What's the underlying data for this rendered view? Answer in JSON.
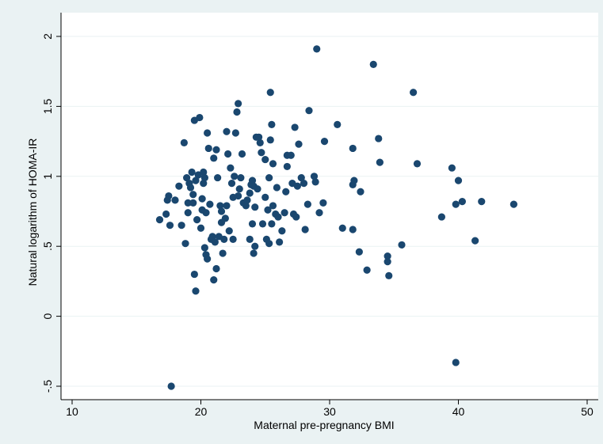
{
  "chart_data": {
    "type": "scatter",
    "title": "",
    "xlabel": "Maternal pre-pregnancy BMI",
    "ylabel": "Natural logarithm of HOMA-IR",
    "xlim": [
      10,
      50
    ],
    "ylim": [
      -0.5,
      2
    ],
    "xticks": [
      10,
      20,
      30,
      40,
      50
    ],
    "yticks": [
      -0.5,
      0,
      0.5,
      1,
      1.5,
      2
    ],
    "ytick_labels": [
      "-.5",
      "0",
      ".5",
      "1",
      "1.5",
      "2"
    ],
    "xtick_labels": [
      "10",
      "20",
      "30",
      "40",
      "50"
    ],
    "grid": "horizontal",
    "colors": {
      "marker": "#1a476f",
      "plot_bg": "#ffffff",
      "outer_bg": "#eaf2f3",
      "grid": "#eaf2f3"
    },
    "points": [
      [
        16.8,
        0.69
      ],
      [
        17.3,
        0.73
      ],
      [
        17.4,
        0.83
      ],
      [
        17.5,
        0.86
      ],
      [
        17.6,
        0.65
      ],
      [
        17.7,
        -0.5
      ],
      [
        18.0,
        0.83
      ],
      [
        18.3,
        0.93
      ],
      [
        18.5,
        0.65
      ],
      [
        18.7,
        1.24
      ],
      [
        18.8,
        0.52
      ],
      [
        18.9,
        0.99
      ],
      [
        19.0,
        0.74
      ],
      [
        19.0,
        0.81
      ],
      [
        19.1,
        0.95
      ],
      [
        19.2,
        0.92
      ],
      [
        19.3,
        1.03
      ],
      [
        19.4,
        0.81
      ],
      [
        19.4,
        0.87
      ],
      [
        19.5,
        0.3
      ],
      [
        19.5,
        1.4
      ],
      [
        19.6,
        0.97
      ],
      [
        19.6,
        0.18
      ],
      [
        19.7,
        0.69
      ],
      [
        19.8,
        1.01
      ],
      [
        19.9,
        1.42
      ],
      [
        20.0,
        0.63
      ],
      [
        20.1,
        0.76
      ],
      [
        20.1,
        0.84
      ],
      [
        20.2,
        0.95
      ],
      [
        20.2,
        1.03
      ],
      [
        20.3,
        0.49
      ],
      [
        20.3,
        0.99
      ],
      [
        20.4,
        0.74
      ],
      [
        20.4,
        0.44
      ],
      [
        20.5,
        1.31
      ],
      [
        20.5,
        0.41
      ],
      [
        20.6,
        1.2
      ],
      [
        20.7,
        0.8
      ],
      [
        20.8,
        0.55
      ],
      [
        20.9,
        0.57
      ],
      [
        21.0,
        0.26
      ],
      [
        21.0,
        1.13
      ],
      [
        21.1,
        0.53
      ],
      [
        21.2,
        0.34
      ],
      [
        21.2,
        1.19
      ],
      [
        21.3,
        0.99
      ],
      [
        21.4,
        0.57
      ],
      [
        21.5,
        0.79
      ],
      [
        21.6,
        0.67
      ],
      [
        21.6,
        0.75
      ],
      [
        21.7,
        0.45
      ],
      [
        21.8,
        0.55
      ],
      [
        21.9,
        0.7
      ],
      [
        22.0,
        1.32
      ],
      [
        22.0,
        0.79
      ],
      [
        22.1,
        1.16
      ],
      [
        22.2,
        0.61
      ],
      [
        22.3,
        1.06
      ],
      [
        22.4,
        0.95
      ],
      [
        22.5,
        0.55
      ],
      [
        22.5,
        0.85
      ],
      [
        22.6,
        1.0
      ],
      [
        22.7,
        1.31
      ],
      [
        22.8,
        1.46
      ],
      [
        22.9,
        1.52
      ],
      [
        22.9,
        0.86
      ],
      [
        23.0,
        0.91
      ],
      [
        23.1,
        0.99
      ],
      [
        23.2,
        1.16
      ],
      [
        23.3,
        0.81
      ],
      [
        23.5,
        0.79
      ],
      [
        23.6,
        0.83
      ],
      [
        23.8,
        0.88
      ],
      [
        23.8,
        0.55
      ],
      [
        23.9,
        0.94
      ],
      [
        24.0,
        0.66
      ],
      [
        24.0,
        0.97
      ],
      [
        24.1,
        0.45
      ],
      [
        24.1,
        0.93
      ],
      [
        24.2,
        0.5
      ],
      [
        24.2,
        0.78
      ],
      [
        24.3,
        1.28
      ],
      [
        24.4,
        0.91
      ],
      [
        24.5,
        1.28
      ],
      [
        24.6,
        1.24
      ],
      [
        24.7,
        1.17
      ],
      [
        24.8,
        0.66
      ],
      [
        25.0,
        0.85
      ],
      [
        25.0,
        1.12
      ],
      [
        25.1,
        0.55
      ],
      [
        25.2,
        0.76
      ],
      [
        25.3,
        0.52
      ],
      [
        25.3,
        0.99
      ],
      [
        25.4,
        1.26
      ],
      [
        25.4,
        1.6
      ],
      [
        25.5,
        1.37
      ],
      [
        25.5,
        0.66
      ],
      [
        25.6,
        1.09
      ],
      [
        25.6,
        0.79
      ],
      [
        25.8,
        0.73
      ],
      [
        25.9,
        0.92
      ],
      [
        26.0,
        0.71
      ],
      [
        26.1,
        0.53
      ],
      [
        26.3,
        0.61
      ],
      [
        26.5,
        0.74
      ],
      [
        26.6,
        0.89
      ],
      [
        26.7,
        1.07
      ],
      [
        26.7,
        1.15
      ],
      [
        27.0,
        1.15
      ],
      [
        27.1,
        0.95
      ],
      [
        27.2,
        0.73
      ],
      [
        27.3,
        1.35
      ],
      [
        27.4,
        0.71
      ],
      [
        27.5,
        0.93
      ],
      [
        27.6,
        1.23
      ],
      [
        27.8,
        0.99
      ],
      [
        28.0,
        0.95
      ],
      [
        28.1,
        0.62
      ],
      [
        28.3,
        0.8
      ],
      [
        28.4,
        1.47
      ],
      [
        28.8,
        1.0
      ],
      [
        28.9,
        0.96
      ],
      [
        29.0,
        1.91
      ],
      [
        29.2,
        0.74
      ],
      [
        29.5,
        0.81
      ],
      [
        29.6,
        1.25
      ],
      [
        30.6,
        1.37
      ],
      [
        31.0,
        0.63
      ],
      [
        31.8,
        0.62
      ],
      [
        31.8,
        1.2
      ],
      [
        31.8,
        0.94
      ],
      [
        31.9,
        0.97
      ],
      [
        32.3,
        0.46
      ],
      [
        32.4,
        0.89
      ],
      [
        32.9,
        0.33
      ],
      [
        33.4,
        1.8
      ],
      [
        33.8,
        1.27
      ],
      [
        33.9,
        1.1
      ],
      [
        34.5,
        0.43
      ],
      [
        34.5,
        0.39
      ],
      [
        34.6,
        0.29
      ],
      [
        35.6,
        0.51
      ],
      [
        36.5,
        1.6
      ],
      [
        36.8,
        1.09
      ],
      [
        38.7,
        0.71
      ],
      [
        39.5,
        1.06
      ],
      [
        39.8,
        0.8
      ],
      [
        39.8,
        -0.33
      ],
      [
        40.0,
        0.97
      ],
      [
        40.3,
        0.82
      ],
      [
        41.3,
        0.54
      ],
      [
        41.8,
        0.82
      ],
      [
        44.3,
        0.8
      ]
    ]
  }
}
